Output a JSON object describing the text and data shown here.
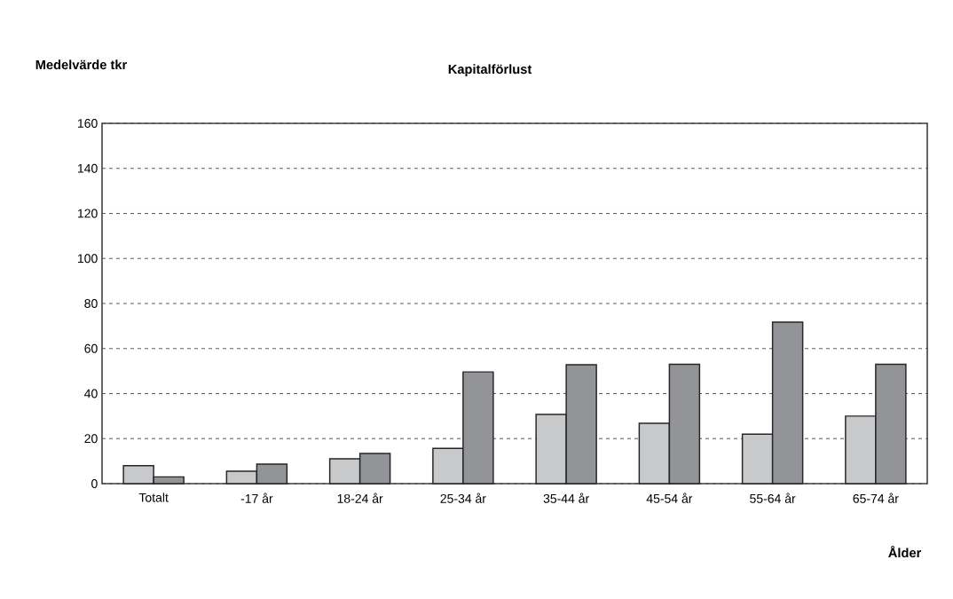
{
  "chart_data": {
    "type": "bar",
    "title": "Kapitalförlust",
    "ylabel": "Medelvärde tkr",
    "xlabel": "Ålder",
    "categories": [
      "Totalt",
      "-17 år",
      "18-24 år",
      "25-34 år",
      "35-44 år",
      "45-54 år",
      "55-64 år",
      "65-74 år"
    ],
    "series": [
      {
        "color": "#c8c9cb",
        "values": [
          8,
          5.5,
          11,
          15.7,
          30.7,
          26.8,
          22,
          30
        ]
      },
      {
        "color": "#939498",
        "values": [
          3,
          8.7,
          13.4,
          49.6,
          52.8,
          53,
          71.7,
          53
        ]
      }
    ],
    "ylim": [
      0,
      160
    ],
    "yticks": [
      0,
      20,
      40,
      60,
      80,
      100,
      120,
      140,
      160
    ],
    "grid": "y"
  }
}
